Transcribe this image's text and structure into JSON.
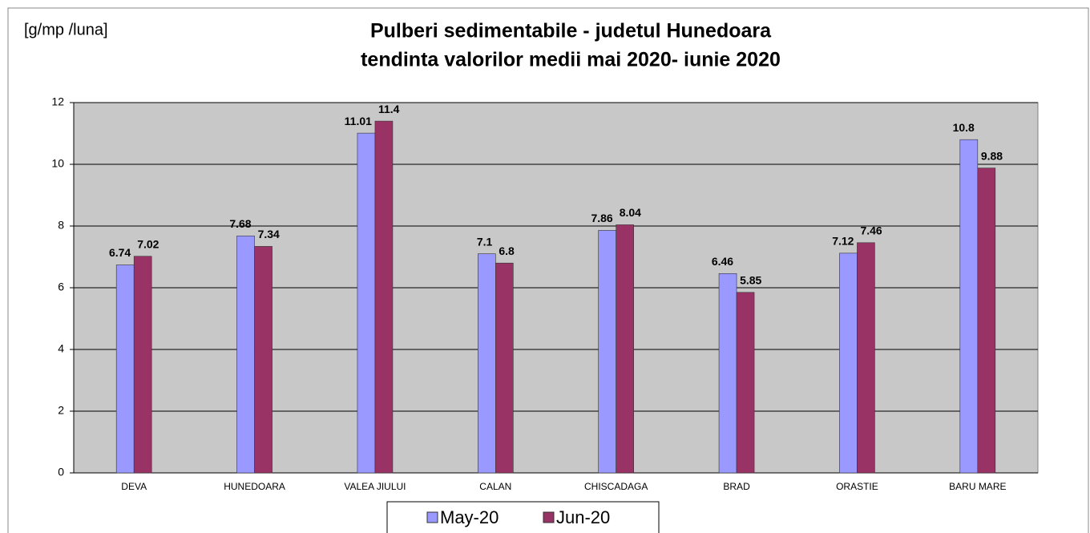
{
  "chart_data": {
    "type": "bar",
    "title": [
      "Pulberi sedimentabile - judetul Hunedoara",
      "tendinta valorilor medii mai  2020- iunie 2020"
    ],
    "y_label": "[g/mp /luna]",
    "categories": [
      "DEVA",
      "HUNEDOARA",
      "VALEA JIULUI",
      "CALAN",
      "CHISCADAGA",
      "BRAD",
      "ORASTIE",
      "BARU MARE"
    ],
    "series": [
      {
        "name": "May-20",
        "color": "#9999ff",
        "values": [
          6.74,
          7.68,
          11.01,
          7.1,
          7.86,
          6.46,
          7.12,
          10.8
        ]
      },
      {
        "name": "Jun-20",
        "color": "#993366",
        "values": [
          7.02,
          7.34,
          11.4,
          6.8,
          8.04,
          5.85,
          7.46,
          9.88
        ]
      }
    ],
    "ylim": [
      0,
      12
    ],
    "yticks": [
      0,
      2,
      4,
      6,
      8,
      10,
      12
    ],
    "grid": true,
    "legend": "bottom"
  }
}
